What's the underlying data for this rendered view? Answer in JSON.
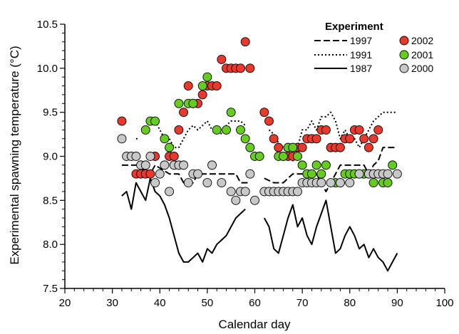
{
  "chart_data": {
    "type": "scatter",
    "xlabel": "Calendar day",
    "ylabel": "Experimental spawning temperature (°C)",
    "xlim": [
      20,
      100
    ],
    "ylim": [
      7.5,
      10.5
    ],
    "xticks": [
      20,
      30,
      40,
      50,
      60,
      70,
      80,
      90,
      100
    ],
    "yticks": [
      7.5,
      8.0,
      8.5,
      9.0,
      9.5,
      10.0,
      10.5
    ],
    "xtick_labels": [
      "20",
      "30",
      "40",
      "50",
      "60",
      "70",
      "80",
      "90",
      "100"
    ],
    "ytick_labels": [
      "7.5",
      "8.0",
      "8.5",
      "9.0",
      "9.5",
      "10.0",
      "10.5"
    ],
    "legend": {
      "title": "Experiment",
      "position": "top-right"
    },
    "line_series": [
      {
        "name": "1997",
        "style": "dashed",
        "segments": [
          [
            [
              32,
              8.9
            ],
            [
              36,
              8.9
            ],
            [
              37,
              8.8
            ],
            [
              38,
              8.8
            ],
            [
              39,
              8.9
            ],
            [
              42,
              8.8
            ],
            [
              44,
              8.8
            ],
            [
              45,
              8.7
            ],
            [
              47,
              8.7
            ],
            [
              48,
              8.8
            ],
            [
              56,
              8.8
            ],
            [
              57,
              8.7
            ],
            [
              59,
              8.7
            ]
          ],
          [
            [
              62,
              8.75
            ],
            [
              64,
              8.7
            ],
            [
              66,
              8.7
            ],
            [
              68,
              8.8
            ],
            [
              70,
              8.8
            ],
            [
              73,
              8.8
            ],
            [
              74,
              8.7
            ],
            [
              75,
              8.6
            ],
            [
              76,
              8.7
            ],
            [
              77,
              8.8
            ],
            [
              78,
              8.9
            ],
            [
              80,
              8.9
            ],
            [
              83,
              8.9
            ],
            [
              84,
              8.8
            ],
            [
              85,
              8.9
            ],
            [
              86,
              8.95
            ],
            [
              87,
              9.1
            ],
            [
              88,
              9.1
            ],
            [
              90,
              9.1
            ]
          ]
        ]
      },
      {
        "name": "1991",
        "style": "dotted",
        "segments": [
          [
            [
              35,
              9.2
            ],
            [
              35.5,
              9.2
            ]
          ],
          [
            [
              39,
              9.4
            ],
            [
              40,
              9.3
            ],
            [
              41,
              9.2
            ],
            [
              42,
              9.2
            ],
            [
              43,
              9.1
            ],
            [
              44,
              9.1
            ],
            [
              45,
              9.2
            ],
            [
              46,
              9.3
            ],
            [
              47,
              9.35
            ],
            [
              48,
              9.3
            ],
            [
              49,
              9.35
            ],
            [
              50,
              9.4
            ],
            [
              51,
              9.3
            ],
            [
              52,
              9.35
            ],
            [
              53,
              9.25
            ],
            [
              54,
              9.35
            ],
            [
              55,
              9.4
            ],
            [
              56,
              9.4
            ],
            [
              57,
              9.4
            ],
            [
              58,
              9.35
            ]
          ],
          [
            [
              63,
              9.3
            ],
            [
              64,
              9.25
            ],
            [
              65,
              9.15
            ],
            [
              66,
              9.1
            ],
            [
              67,
              9.0
            ],
            [
              68,
              8.95
            ],
            [
              69,
              9.1
            ],
            [
              70,
              9.3
            ],
            [
              71,
              9.3
            ],
            [
              72,
              9.4
            ],
            [
              73,
              9.3
            ],
            [
              74,
              9.45
            ],
            [
              75,
              9.45
            ],
            [
              76,
              9.5
            ],
            [
              77,
              9.4
            ],
            [
              78,
              9.2
            ],
            [
              79,
              9.3
            ],
            [
              80,
              9.2
            ],
            [
              81,
              9.2
            ],
            [
              82,
              9.1
            ],
            [
              83,
              9.2
            ],
            [
              84,
              9.3
            ],
            [
              85,
              9.4
            ],
            [
              86,
              9.45
            ],
            [
              87,
              9.5
            ],
            [
              88,
              9.5
            ],
            [
              90,
              9.5
            ]
          ]
        ]
      },
      {
        "name": "1987",
        "style": "solid",
        "segments": [
          [
            [
              32,
              8.55
            ],
            [
              33,
              8.6
            ],
            [
              34,
              8.4
            ],
            [
              35,
              8.7
            ],
            [
              36,
              8.6
            ],
            [
              37,
              8.5
            ],
            [
              38,
              8.75
            ],
            [
              39,
              8.6
            ],
            [
              40,
              8.55
            ],
            [
              41,
              8.45
            ],
            [
              42,
              8.3
            ],
            [
              43,
              8.1
            ],
            [
              44,
              7.9
            ],
            [
              45,
              7.8
            ],
            [
              46,
              7.8
            ],
            [
              47,
              7.85
            ],
            [
              48,
              7.9
            ],
            [
              49,
              7.8
            ],
            [
              50,
              7.95
            ],
            [
              51,
              7.9
            ],
            [
              52,
              8.0
            ],
            [
              53,
              8.05
            ],
            [
              54,
              8.1
            ],
            [
              55,
              8.2
            ],
            [
              56,
              8.3
            ],
            [
              57,
              8.35
            ],
            [
              58,
              8.4
            ]
          ],
          [
            [
              62,
              8.3
            ],
            [
              63,
              8.2
            ],
            [
              64,
              7.95
            ],
            [
              65,
              7.9
            ],
            [
              66,
              8.1
            ],
            [
              67,
              8.3
            ],
            [
              68,
              8.45
            ],
            [
              69,
              8.2
            ],
            [
              70,
              8.3
            ],
            [
              71,
              8.1
            ],
            [
              72,
              8.0
            ],
            [
              73,
              8.2
            ],
            [
              74,
              8.35
            ],
            [
              75,
              8.5
            ],
            [
              76,
              8.2
            ],
            [
              77,
              7.9
            ],
            [
              78,
              7.95
            ],
            [
              79,
              8.1
            ],
            [
              80,
              8.2
            ],
            [
              81,
              8.1
            ],
            [
              82,
              7.95
            ],
            [
              83,
              8.0
            ],
            [
              84,
              7.85
            ],
            [
              85,
              7.95
            ],
            [
              86,
              7.85
            ],
            [
              87,
              7.8
            ],
            [
              88,
              7.7
            ],
            [
              89,
              7.8
            ],
            [
              90,
              7.9
            ]
          ]
        ]
      }
    ],
    "point_series": [
      {
        "name": "2002",
        "color": "#e8392c",
        "points": [
          [
            32,
            9.4
          ],
          [
            35,
            8.8
          ],
          [
            36,
            8.8
          ],
          [
            37,
            8.8
          ],
          [
            38,
            8.8
          ],
          [
            39,
            9.0
          ],
          [
            42,
            9.0
          ],
          [
            43,
            9.0
          ],
          [
            44,
            9.3
          ],
          [
            45,
            9.5
          ],
          [
            46,
            9.8
          ],
          [
            47,
            9.6
          ],
          [
            48,
            9.6
          ],
          [
            49,
            9.7
          ],
          [
            50,
            9.8
          ],
          [
            51,
            9.8
          ],
          [
            52,
            9.8
          ],
          [
            53,
            10.1
          ],
          [
            54,
            10.0
          ],
          [
            55,
            10.0
          ],
          [
            56,
            10.0
          ],
          [
            57,
            10.0
          ],
          [
            58,
            10.3
          ],
          [
            59,
            10.0
          ],
          [
            62,
            9.5
          ],
          [
            63,
            9.4
          ],
          [
            64,
            9.2
          ],
          [
            65,
            9.1
          ],
          [
            66,
            9.0
          ],
          [
            67,
            9.0
          ],
          [
            68,
            9.0
          ],
          [
            69,
            9.1
          ],
          [
            70,
            9.1
          ],
          [
            71,
            9.2
          ],
          [
            72,
            9.2
          ],
          [
            73,
            9.2
          ],
          [
            74,
            9.3
          ],
          [
            75,
            9.3
          ],
          [
            76,
            9.1
          ],
          [
            77,
            9.1
          ],
          [
            78,
            9.1
          ],
          [
            79,
            9.2
          ],
          [
            80,
            9.2
          ],
          [
            81,
            9.3
          ],
          [
            82,
            9.3
          ],
          [
            83,
            9.2
          ],
          [
            84,
            9.1
          ],
          [
            85,
            9.2
          ],
          [
            86,
            9.3
          ]
        ]
      },
      {
        "name": "2001",
        "color": "#66cc1f",
        "points": [
          [
            37,
            9.3
          ],
          [
            38,
            9.4
          ],
          [
            39,
            9.4
          ],
          [
            41,
            9.2
          ],
          [
            42,
            9.1
          ],
          [
            44,
            9.6
          ],
          [
            46,
            9.6
          ],
          [
            47,
            9.6
          ],
          [
            49,
            9.8
          ],
          [
            50,
            9.9
          ],
          [
            52,
            9.3
          ],
          [
            54,
            9.3
          ],
          [
            55,
            9.5
          ],
          [
            57,
            9.3
          ],
          [
            58,
            9.2
          ],
          [
            59,
            9.1
          ],
          [
            60,
            9.0
          ],
          [
            61,
            9.0
          ],
          [
            65,
            9.0
          ],
          [
            66,
            9.0
          ],
          [
            67,
            9.1
          ],
          [
            68,
            9.1
          ],
          [
            69,
            9.0
          ],
          [
            70,
            8.9
          ],
          [
            71,
            8.8
          ],
          [
            72,
            8.8
          ],
          [
            73,
            8.9
          ],
          [
            74,
            8.8
          ],
          [
            75,
            8.9
          ],
          [
            77,
            8.7
          ],
          [
            78,
            8.7
          ],
          [
            79,
            8.8
          ],
          [
            80,
            8.8
          ],
          [
            81,
            8.8
          ],
          [
            82,
            8.8
          ],
          [
            83,
            8.8
          ],
          [
            84,
            8.8
          ],
          [
            85,
            8.7
          ],
          [
            86,
            8.8
          ],
          [
            87,
            8.7
          ],
          [
            88,
            8.7
          ],
          [
            89,
            8.9
          ]
        ]
      },
      {
        "name": "2000",
        "color": "#c8c8c8",
        "points": [
          [
            32,
            9.2
          ],
          [
            33,
            9.0
          ],
          [
            34,
            9.0
          ],
          [
            35,
            9.0
          ],
          [
            36,
            8.9
          ],
          [
            37,
            8.9
          ],
          [
            38,
            9.0
          ],
          [
            39,
            8.7
          ],
          [
            40,
            8.8
          ],
          [
            41,
            8.9
          ],
          [
            42,
            8.6
          ],
          [
            43,
            8.9
          ],
          [
            44,
            8.9
          ],
          [
            45,
            8.9
          ],
          [
            46,
            8.7
          ],
          [
            47,
            8.8
          ],
          [
            48,
            8.8
          ],
          [
            50,
            8.7
          ],
          [
            51,
            8.9
          ],
          [
            53,
            8.7
          ],
          [
            55,
            8.6
          ],
          [
            56,
            8.5
          ],
          [
            57,
            8.6
          ],
          [
            58,
            8.6
          ],
          [
            59,
            8.8
          ],
          [
            60,
            8.5
          ],
          [
            62,
            8.6
          ],
          [
            63,
            8.6
          ],
          [
            64,
            8.6
          ],
          [
            65,
            8.6
          ],
          [
            66,
            8.6
          ],
          [
            67,
            8.6
          ],
          [
            68,
            8.6
          ],
          [
            69,
            8.6
          ],
          [
            70,
            8.7
          ],
          [
            71,
            8.7
          ],
          [
            72,
            8.7
          ],
          [
            73,
            8.7
          ],
          [
            74,
            8.7
          ],
          [
            76,
            8.7
          ],
          [
            78,
            8.7
          ],
          [
            80,
            8.7
          ],
          [
            82,
            8.8
          ],
          [
            84,
            8.8
          ],
          [
            85,
            8.8
          ],
          [
            86,
            8.8
          ],
          [
            87,
            8.8
          ],
          [
            88,
            8.8
          ],
          [
            90,
            8.8
          ]
        ]
      }
    ]
  }
}
